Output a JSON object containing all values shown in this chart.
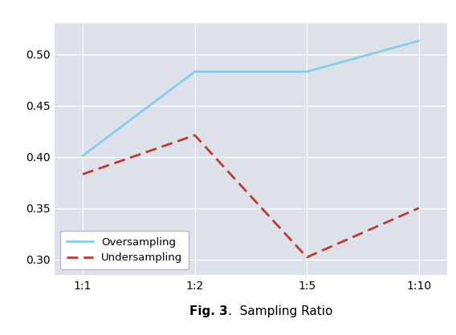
{
  "x_labels": [
    "1:1",
    "1:2",
    "1:5",
    "1:10"
  ],
  "oversampling_values": [
    0.401,
    0.483,
    0.483,
    0.513
  ],
  "undersampling_values": [
    0.383,
    0.421,
    0.302,
    0.35
  ],
  "oversampling_color": "#87CEEB",
  "undersampling_color": "#C0392B",
  "oversampling_label": "Oversampling",
  "undersampling_label": "Undersampling",
  "background_color": "#DDE1EA",
  "fig_background": "#ffffff",
  "ylim": [
    0.285,
    0.53
  ],
  "yticks": [
    0.3,
    0.35,
    0.4,
    0.45,
    0.5
  ],
  "fig_label_bold": "Fig. 3",
  "fig_label_normal": "Sampling Ratio",
  "legend_loc": "lower left",
  "linewidth": 2.0,
  "tick_fontsize": 10,
  "caption_fontsize": 11
}
